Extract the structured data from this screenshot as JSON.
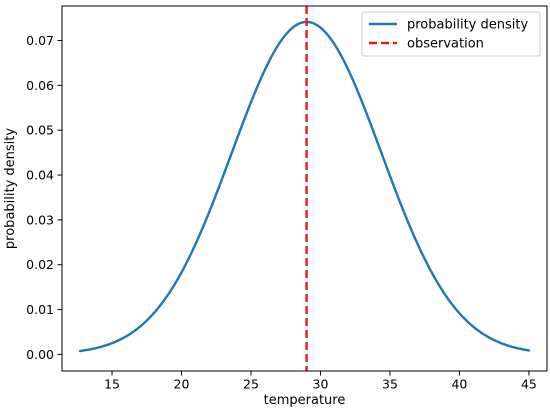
{
  "chart_data": {
    "type": "line",
    "title": "",
    "xlabel": "temperature",
    "ylabel": "probability density",
    "xlim": [
      11.4,
      46.3
    ],
    "ylim": [
      -0.0037,
      0.0777
    ],
    "xticks": [
      15,
      20,
      25,
      30,
      35,
      40,
      45
    ],
    "yticks": [
      0.0,
      0.01,
      0.02,
      0.03,
      0.04,
      0.05,
      0.06,
      0.07
    ],
    "grid": false,
    "legend_position": "top-right",
    "series": [
      {
        "name": "probability density",
        "kind": "curve",
        "color": "#1f77b4",
        "style": "solid",
        "x_range": [
          12.7,
          45.0
        ],
        "mean": 29.0,
        "std": 5.38,
        "x": [
          12.7,
          15,
          17.5,
          20,
          22.5,
          25,
          27.5,
          29,
          30.5,
          33,
          35,
          37.5,
          40,
          42.5,
          45
        ],
        "y": [
          0.0007,
          0.0025,
          0.0076,
          0.0183,
          0.0359,
          0.0559,
          0.0713,
          0.0742,
          0.0713,
          0.0559,
          0.0398,
          0.0214,
          0.0092,
          0.0031,
          0.0009
        ]
      },
      {
        "name": "observation",
        "kind": "vline",
        "color": "#e41a1c",
        "style": "dashed",
        "x": 29.0
      }
    ]
  }
}
